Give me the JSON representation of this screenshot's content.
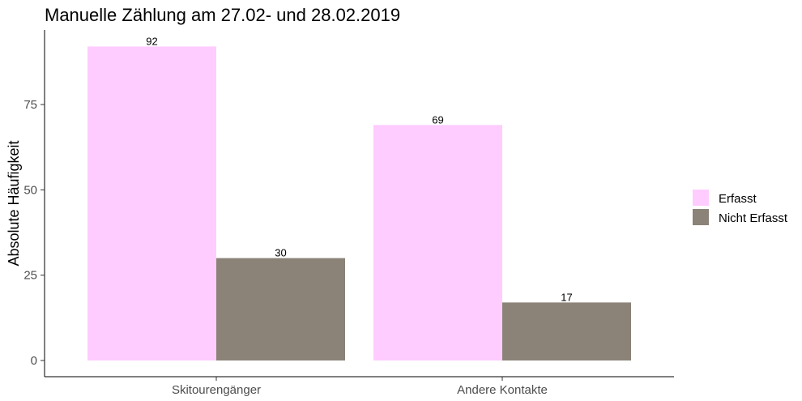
{
  "chart_data": {
    "type": "bar",
    "title": "Manuelle Zählung am 27.02- und 28.02.2019",
    "xlabel": "",
    "ylabel": "Absolute Häufigkeit",
    "categories": [
      "Skitourengänger",
      "Andere Kontakte"
    ],
    "series": [
      {
        "name": "Erfasst",
        "values": [
          92,
          69
        ],
        "color": "#ffccff"
      },
      {
        "name": "Nicht Erfasst",
        "values": [
          30,
          17
        ],
        "color": "#8b8378"
      }
    ],
    "ylim": [
      0,
      92
    ],
    "yticks": [
      0,
      25,
      50,
      75
    ],
    "grid": false,
    "legend_position": "right"
  }
}
